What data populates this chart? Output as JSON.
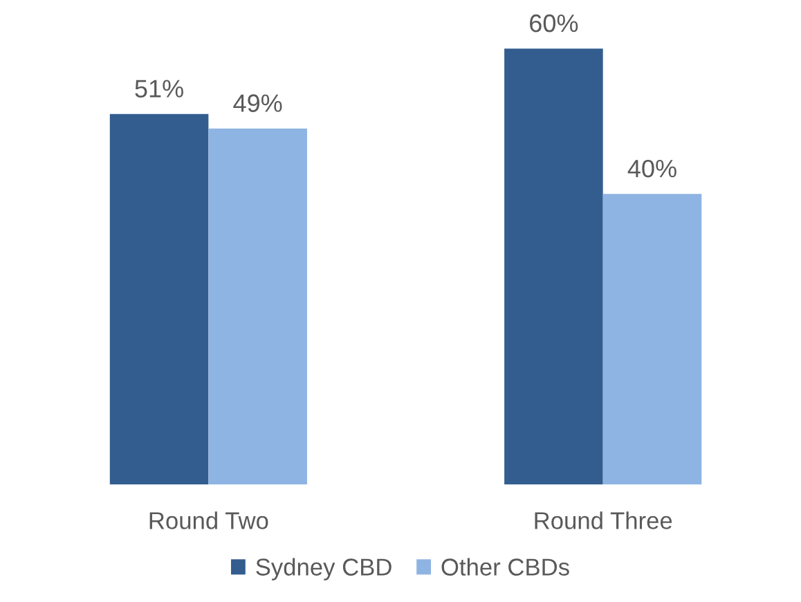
{
  "chart_data": {
    "type": "bar",
    "categories": [
      "Round Two",
      "Round Three"
    ],
    "series": [
      {
        "name": "Sydney CBD",
        "color": "#335d8f",
        "values": [
          51,
          60
        ],
        "value_labels": [
          "51%",
          "60%"
        ]
      },
      {
        "name": "Other CBDs",
        "color": "#8eb4e3",
        "values": [
          49,
          40
        ],
        "value_labels": [
          "49%",
          "40%"
        ]
      }
    ],
    "tick_labels": "x",
    "grid": false,
    "legend": "bottom"
  }
}
